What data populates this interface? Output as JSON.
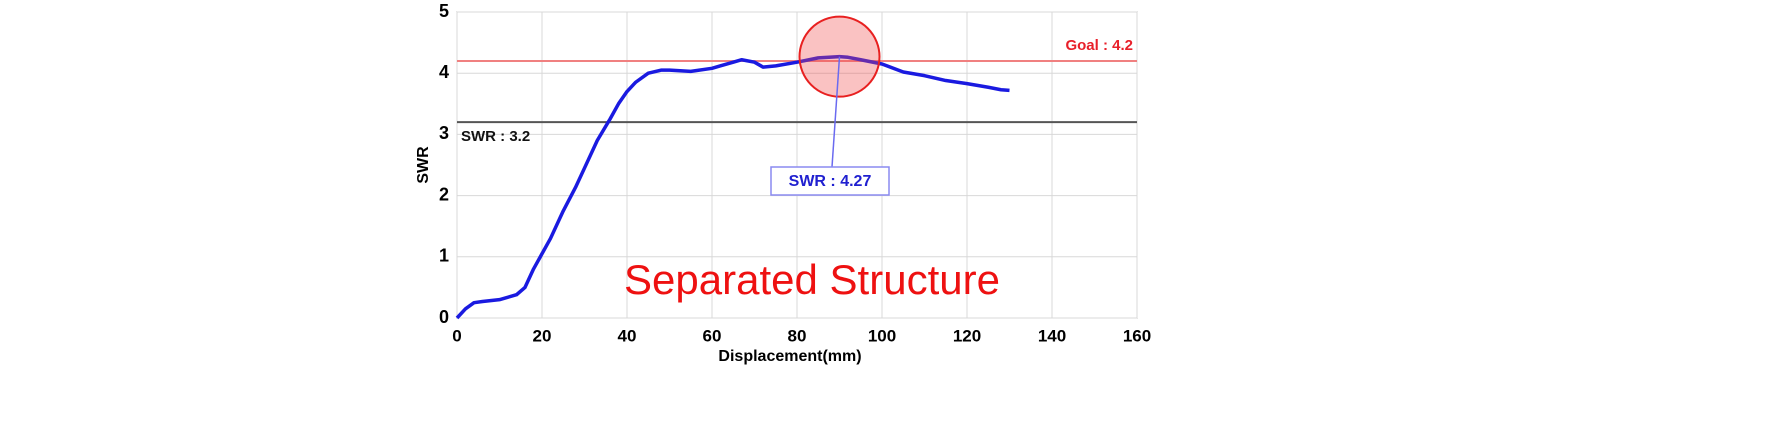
{
  "chart_data": {
    "type": "line",
    "x_label": "Displacement(mm)",
    "y_label": "SWR",
    "annotation": "Separated Structure",
    "callout": "SWR : 4.27",
    "xlim": [
      0,
      160
    ],
    "xticks": [
      0,
      20,
      40,
      60,
      80,
      100,
      120,
      140,
      160
    ],
    "ylim": [
      0,
      5
    ],
    "yticks": [
      0,
      1,
      2,
      3,
      4,
      5
    ],
    "grid": true,
    "reference_lines": [
      {
        "value": 4.2,
        "label": "Goal : 4.2",
        "color": "#f08080",
        "label_color": "#e8202a"
      },
      {
        "value": 3.2,
        "label": "SWR : 3.2",
        "color": "#555555",
        "label_color": "#111111"
      }
    ],
    "series": [
      {
        "name": "SWR",
        "color": "#1a1ae0",
        "x": [
          0,
          2,
          4,
          6,
          10,
          14,
          16,
          18,
          20,
          22,
          25,
          28,
          30,
          33,
          36,
          38,
          40,
          42,
          45,
          48,
          50,
          55,
          60,
          62,
          65,
          67,
          70,
          72,
          75,
          80,
          85,
          90,
          92,
          95,
          100,
          105,
          110,
          115,
          120,
          125,
          128,
          130
        ],
        "values": [
          0,
          0.15,
          0.25,
          0.27,
          0.3,
          0.38,
          0.5,
          0.8,
          1.05,
          1.3,
          1.75,
          2.15,
          2.45,
          2.9,
          3.25,
          3.5,
          3.7,
          3.85,
          4.0,
          4.05,
          4.05,
          4.03,
          4.08,
          4.12,
          4.18,
          4.22,
          4.18,
          4.1,
          4.12,
          4.18,
          4.25,
          4.27,
          4.26,
          4.22,
          4.15,
          4.02,
          3.96,
          3.88,
          3.83,
          3.77,
          3.73,
          3.72
        ]
      }
    ]
  }
}
